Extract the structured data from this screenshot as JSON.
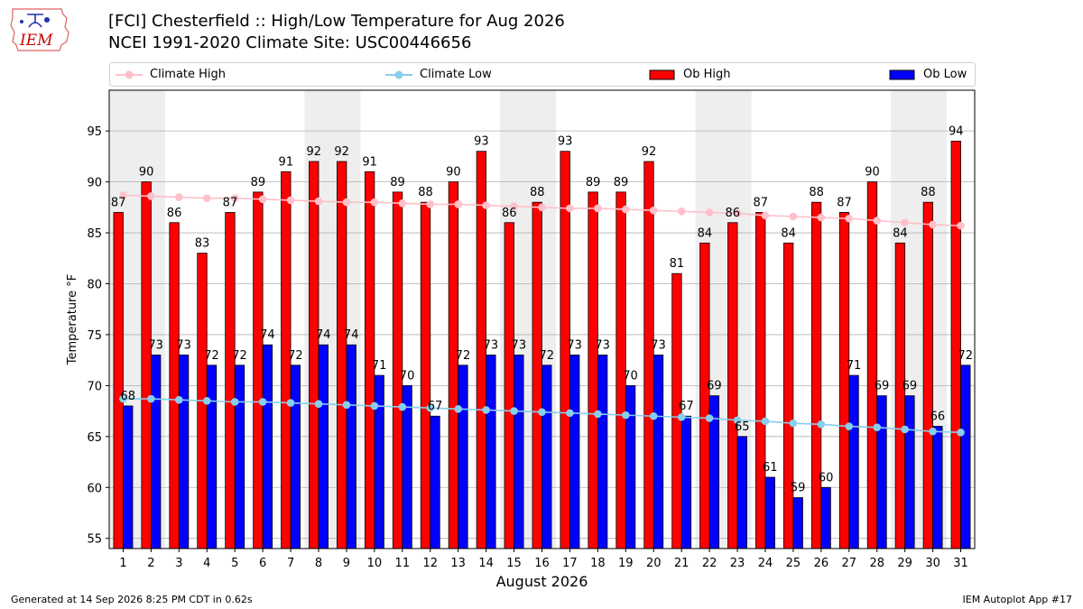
{
  "logo": {
    "text": "IEM"
  },
  "title": {
    "line1": "[FCI] Chesterfield :: High/Low Temperature for Aug 2026",
    "line2": "NCEI 1991-2020 Climate Site: USC00446656"
  },
  "legend": {
    "climate_high": "Climate High",
    "climate_low": "Climate Low",
    "ob_high": "Ob High",
    "ob_low": "Ob Low"
  },
  "colors": {
    "ob_high": "#ff0000",
    "ob_low": "#0000ff",
    "climate_high": "#ffc0cb",
    "climate_low": "#87ceeb",
    "weekend_band": "#eeeeee"
  },
  "footer": {
    "left": "Generated at 14 Sep 2026 8:25 PM CDT in 0.62s",
    "right": "IEM Autoplot App #17"
  },
  "chart_data": {
    "type": "bar",
    "title": "[FCI] Chesterfield :: High/Low Temperature for Aug 2026",
    "xlabel": "August 2026",
    "ylabel": "Temperature °F",
    "ylim": [
      54,
      99
    ],
    "yticks": [
      55,
      60,
      65,
      70,
      75,
      80,
      85,
      90,
      95
    ],
    "grid": true,
    "legend_position": "top",
    "weekend_days": [
      1,
      2,
      8,
      9,
      15,
      16,
      22,
      23,
      29,
      30
    ],
    "categories": [
      "1",
      "2",
      "3",
      "4",
      "5",
      "6",
      "7",
      "8",
      "9",
      "10",
      "11",
      "12",
      "13",
      "14",
      "15",
      "16",
      "17",
      "18",
      "19",
      "20",
      "21",
      "22",
      "23",
      "24",
      "25",
      "26",
      "27",
      "28",
      "29",
      "30",
      "31"
    ],
    "series": [
      {
        "name": "Ob High",
        "kind": "bar",
        "values": [
          87,
          90,
          86,
          83,
          87,
          89,
          91,
          92,
          92,
          91,
          89,
          88,
          90,
          93,
          86,
          88,
          93,
          89,
          89,
          92,
          81,
          84,
          86,
          87,
          84,
          88,
          87,
          90,
          84,
          88,
          94
        ]
      },
      {
        "name": "Ob Low",
        "kind": "bar",
        "values": [
          68,
          73,
          73,
          72,
          72,
          74,
          72,
          74,
          74,
          71,
          70,
          67,
          72,
          73,
          73,
          72,
          73,
          73,
          70,
          73,
          67,
          69,
          65,
          61,
          59,
          60,
          71,
          69,
          69,
          66,
          72
        ]
      },
      {
        "name": "Climate High",
        "kind": "line",
        "values": [
          88.7,
          88.6,
          88.5,
          88.4,
          88.4,
          88.3,
          88.2,
          88.1,
          88.0,
          88.0,
          87.9,
          87.8,
          87.8,
          87.7,
          87.6,
          87.5,
          87.4,
          87.4,
          87.3,
          87.2,
          87.1,
          87.0,
          86.9,
          86.7,
          86.6,
          86.5,
          86.4,
          86.2,
          86.0,
          85.8,
          85.7
        ]
      },
      {
        "name": "Climate Low",
        "kind": "line",
        "values": [
          68.7,
          68.7,
          68.6,
          68.5,
          68.4,
          68.4,
          68.3,
          68.2,
          68.1,
          68.0,
          67.9,
          67.8,
          67.7,
          67.6,
          67.5,
          67.4,
          67.3,
          67.2,
          67.1,
          67.0,
          66.9,
          66.8,
          66.6,
          66.5,
          66.3,
          66.2,
          66.0,
          65.9,
          65.7,
          65.5,
          65.4
        ]
      }
    ]
  }
}
